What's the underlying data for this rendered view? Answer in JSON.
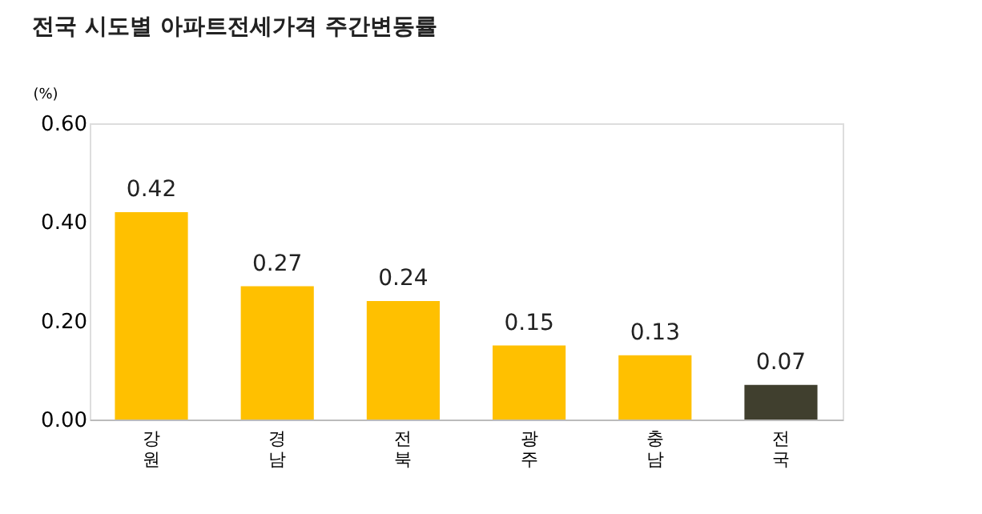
{
  "chart_data": {
    "type": "bar",
    "title": "전국 시도별 아파트전세가격 주간변동률",
    "ylabel": "(%)",
    "categories": [
      "강원",
      "경남",
      "전북",
      "광주",
      "충남",
      "전국"
    ],
    "values": [
      0.42,
      0.27,
      0.24,
      0.15,
      0.13,
      0.07
    ],
    "colors": [
      "#ffc000",
      "#ffc000",
      "#ffc000",
      "#ffc000",
      "#ffc000",
      "#403f2e"
    ],
    "ylim": [
      0,
      0.6
    ],
    "yticks": [
      {
        "value": 0,
        "label": "0.00"
      },
      {
        "value": 0.2,
        "label": "0.20"
      },
      {
        "value": 0.4,
        "label": "0.40"
      },
      {
        "value": 0.6,
        "label": "0.60"
      }
    ],
    "data_labels": true,
    "grid": false
  }
}
